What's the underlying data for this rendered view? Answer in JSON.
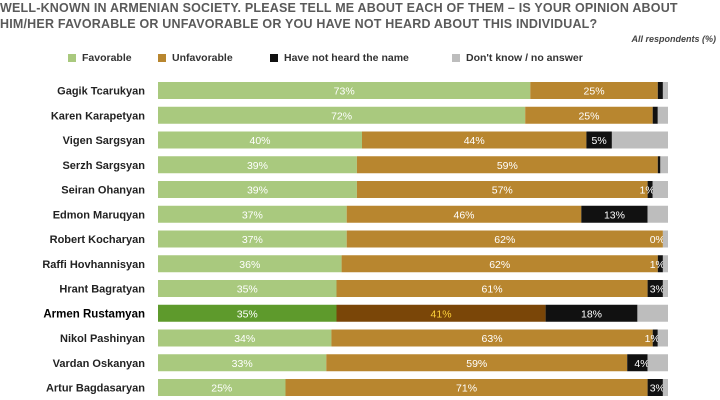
{
  "title_lines": [
    "WELL-KNOWN IN ARMENIAN SOCIETY. PLEASE TELL ME ABOUT EACH OF THEM – IS YOUR OPINION ABOUT",
    "HIM/HER FAVORABLE OR UNFAVORABLE OR YOU HAVE NOT HEARD ABOUT THIS INDIVIDUAL?"
  ],
  "respondents_note": "All respondents (%)",
  "colors": {
    "favorable": "#a9c97e",
    "unfavorable": "#b8862f",
    "not_heard": "#111111",
    "dont_know": "#bdbdbd",
    "favorable_highlight": "#5e9a2c",
    "unfavorable_highlight": "#7a4608"
  },
  "chart_data": {
    "type": "bar",
    "orientation": "horizontal",
    "stacked": true,
    "legend_position": "top",
    "xlim": [
      0,
      100
    ],
    "categories": [
      "Gagik Tcarukyan",
      "Karen Karapetyan",
      "Vigen Sargsyan",
      "Serzh Sargsyan",
      "Seiran Ohanyan",
      "Edmon Maruqyan",
      "Robert Kocharyan",
      "Raffi Hovhannisyan",
      "Hrant Bagratyan",
      "Armen Rustamyan",
      "Nikol Pashinyan",
      "Vardan Oskanyan",
      "Artur Bagdasaryan"
    ],
    "highlighted_category": "Armen Rustamyan",
    "series": [
      {
        "name": "Favorable",
        "values": [
          73,
          72,
          40,
          39,
          39,
          37,
          37,
          36,
          35,
          35,
          34,
          33,
          25
        ]
      },
      {
        "name": "Unfavorable",
        "values": [
          25,
          25,
          44,
          59,
          57,
          46,
          62,
          62,
          61,
          41,
          63,
          59,
          71
        ]
      },
      {
        "name": "Have not heard the name",
        "values": [
          1,
          1,
          5,
          0.5,
          1,
          13,
          0,
          1,
          3,
          18,
          1,
          4,
          3
        ]
      },
      {
        "name": "Don't know / no answer",
        "values": [
          1,
          2,
          11,
          1.5,
          3,
          4,
          1,
          1,
          1,
          6,
          2,
          4,
          1
        ]
      }
    ],
    "value_labels": [
      [
        "73%",
        "25%",
        "",
        ""
      ],
      [
        "72%",
        "25%",
        "",
        ""
      ],
      [
        "40%",
        "44%",
        "5%",
        ""
      ],
      [
        "39%",
        "59%",
        "",
        ""
      ],
      [
        "39%",
        "57%",
        "1%",
        ""
      ],
      [
        "37%",
        "46%",
        "13%",
        ""
      ],
      [
        "37%",
        "62%",
        "0%",
        ""
      ],
      [
        "36%",
        "62%",
        "1%",
        ""
      ],
      [
        "35%",
        "61%",
        "3%",
        ""
      ],
      [
        "35%",
        "41%",
        "18%",
        ""
      ],
      [
        "34%",
        "63%",
        "1%",
        ""
      ],
      [
        "33%",
        "59%",
        "4%",
        ""
      ],
      [
        "25%",
        "71%",
        "3%",
        ""
      ]
    ]
  }
}
